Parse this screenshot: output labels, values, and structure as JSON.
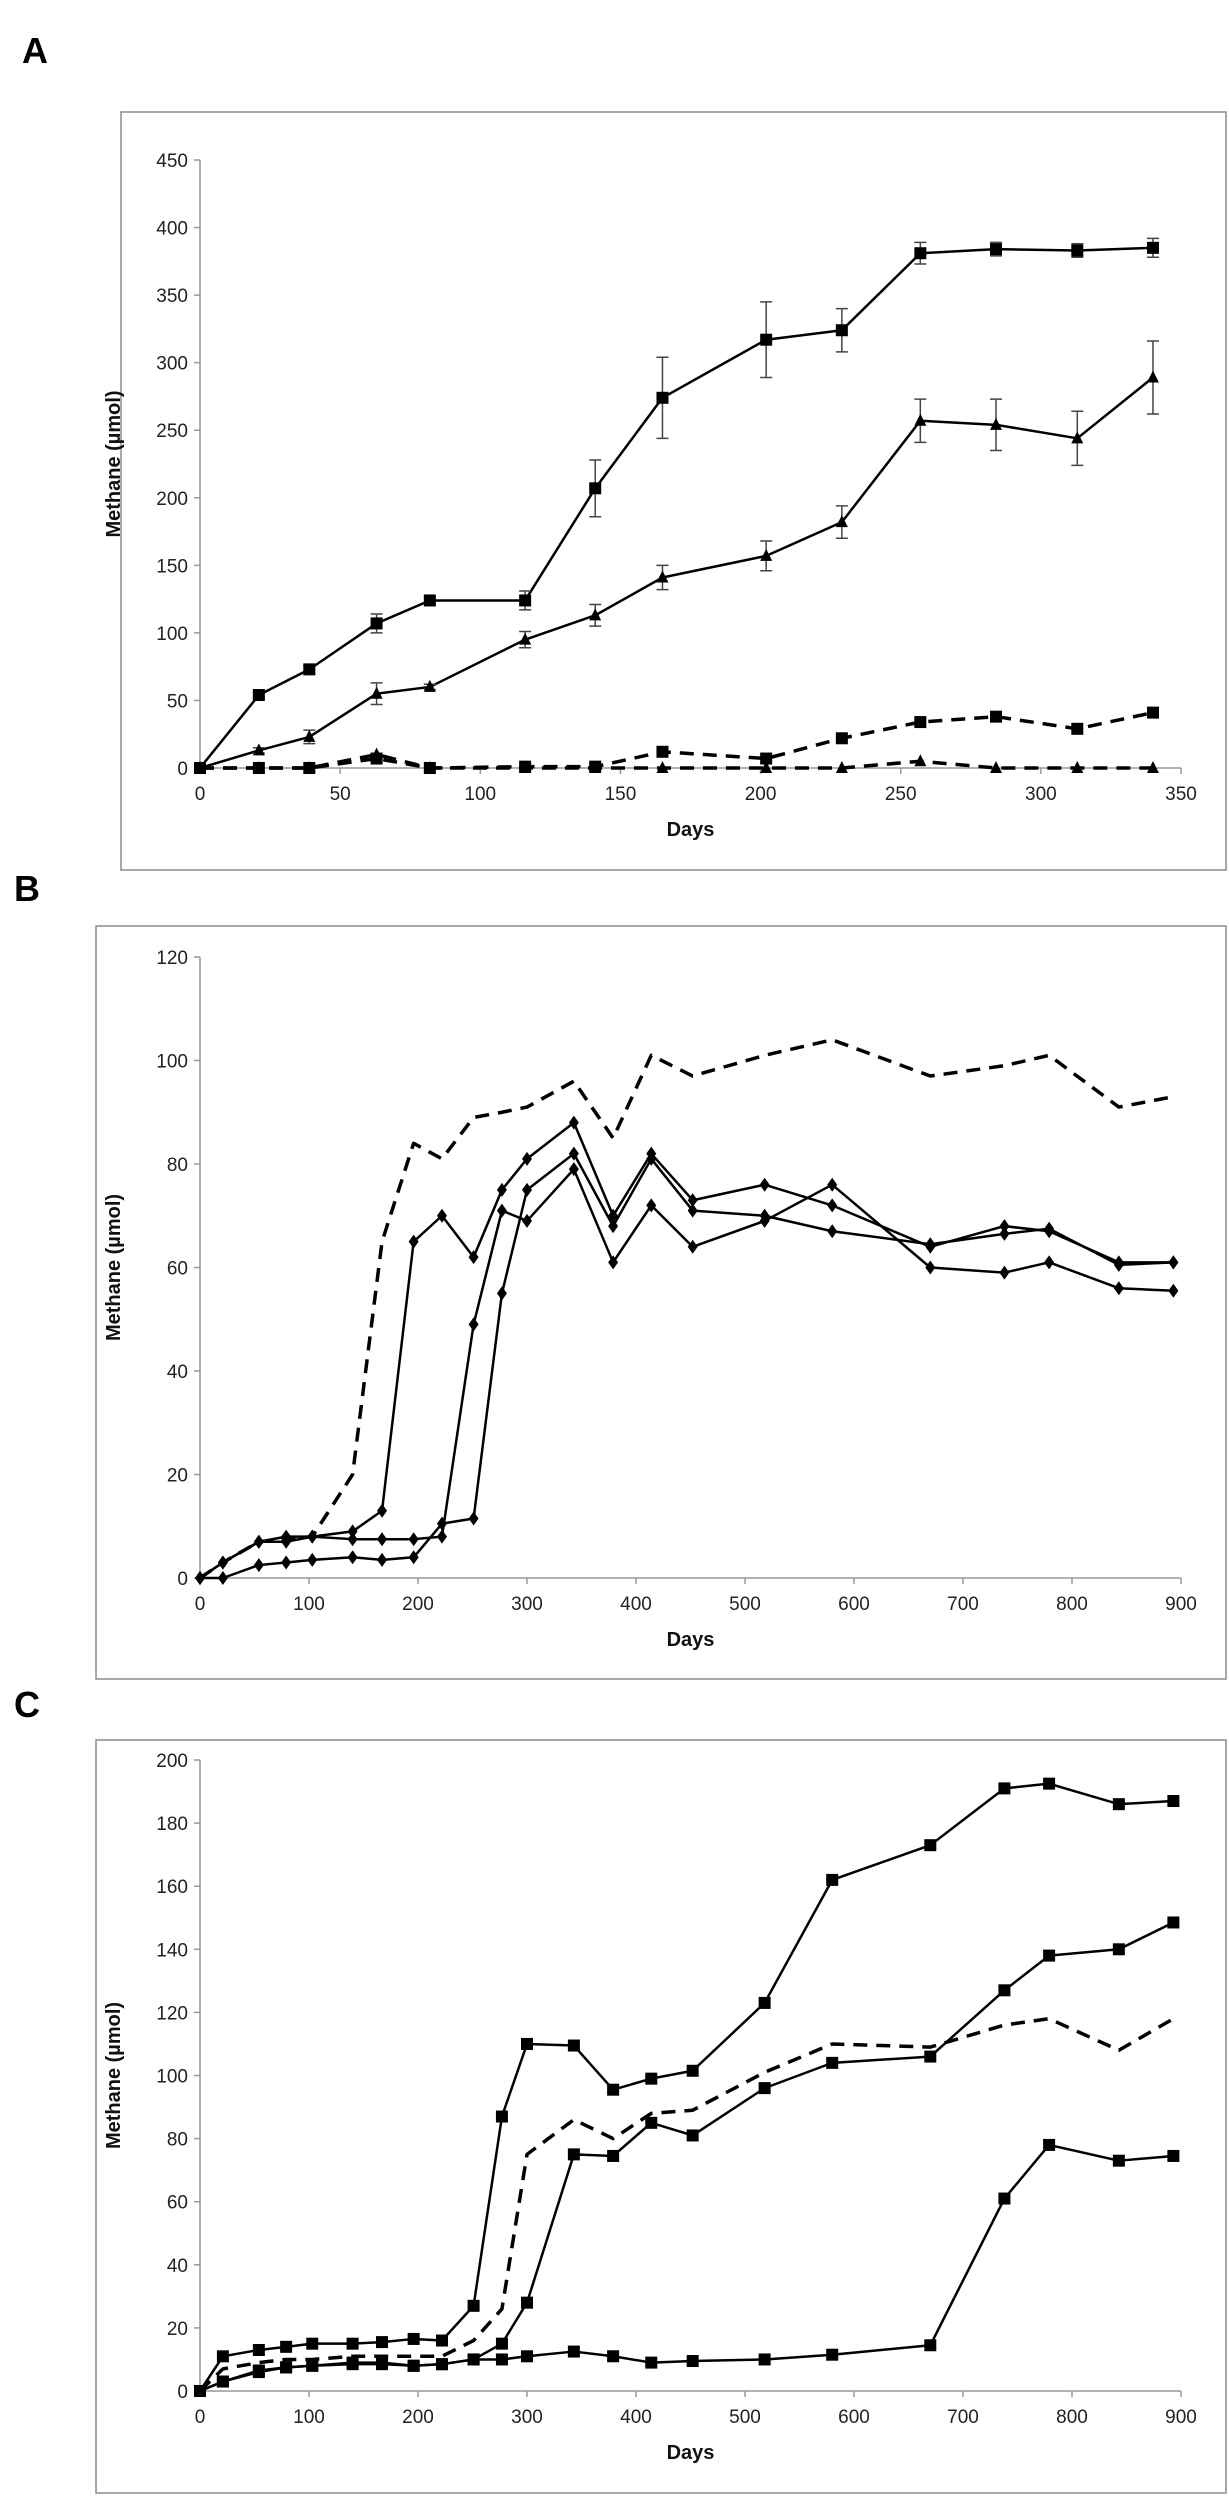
{
  "chart_data": [
    {
      "panel": "A",
      "type": "line",
      "xlabel": "Days",
      "ylabel": "Methane (µmol)",
      "xlim": [
        0,
        350
      ],
      "ylim": [
        0,
        450
      ],
      "xticks": [
        0,
        50,
        100,
        150,
        200,
        250,
        300,
        350
      ],
      "yticks": [
        0,
        50,
        100,
        150,
        200,
        250,
        300,
        350,
        400,
        450
      ],
      "grid": false,
      "x": [
        0,
        21,
        39,
        63,
        82,
        116,
        141,
        165,
        202,
        229,
        257,
        284,
        313,
        340
      ],
      "series": [
        {
          "name": "solid-square",
          "style": "solid",
          "marker": "square",
          "values": [
            0,
            54,
            73,
            107,
            124,
            124,
            207,
            274,
            317,
            324,
            381,
            384,
            383,
            385
          ],
          "error": [
            0,
            2,
            3,
            7,
            2,
            7,
            21,
            30,
            28,
            16,
            8,
            5,
            5,
            7
          ]
        },
        {
          "name": "solid-triangle",
          "style": "solid",
          "marker": "triangle",
          "values": [
            0,
            13,
            23,
            55,
            60,
            95,
            113,
            141,
            157,
            182,
            257,
            254,
            244,
            289
          ],
          "error": [
            0,
            2,
            5,
            8,
            2,
            6,
            8,
            9,
            11,
            12,
            16,
            19,
            20,
            27
          ]
        },
        {
          "name": "dashed-square",
          "style": "dashed",
          "marker": "square",
          "values": [
            0,
            0,
            0,
            7,
            0,
            1,
            1,
            12,
            7,
            22,
            34,
            38,
            29,
            41
          ]
        },
        {
          "name": "dashed-triangle",
          "style": "dashed",
          "marker": "triangle",
          "values": [
            0,
            0,
            0,
            10,
            0,
            0,
            0,
            0,
            0,
            0,
            5,
            0,
            0,
            0
          ]
        }
      ]
    },
    {
      "panel": "B",
      "type": "line",
      "xlabel": "Days",
      "ylabel": "Methane (µmol)",
      "xlim": [
        0,
        900
      ],
      "ylim": [
        0,
        120
      ],
      "xticks": [
        0,
        100,
        200,
        300,
        400,
        500,
        600,
        700,
        800,
        900
      ],
      "yticks": [
        0,
        20,
        40,
        60,
        80,
        100,
        120
      ],
      "grid": false,
      "x": [
        0,
        21,
        54,
        79,
        103,
        140,
        167,
        196,
        222,
        251,
        277,
        300,
        343,
        379,
        414,
        452,
        518,
        580,
        670,
        738,
        779,
        843,
        893
      ],
      "series": [
        {
          "name": "replicate-1",
          "style": "solid",
          "marker": "diamond",
          "values": [
            0,
            3,
            7,
            7,
            8,
            9,
            13,
            65,
            70,
            62,
            75,
            81,
            88,
            70,
            82,
            73,
            76,
            72,
            64,
            68,
            67,
            61,
            61
          ]
        },
        {
          "name": "replicate-2",
          "style": "solid",
          "marker": "diamond",
          "values": [
            0,
            3,
            7,
            8,
            8,
            7.5,
            7.5,
            7.5,
            8,
            49,
            71,
            69,
            79,
            61,
            72,
            64,
            69,
            76,
            60,
            59,
            61,
            56,
            55.5
          ]
        },
        {
          "name": "replicate-3",
          "style": "solid",
          "marker": "diamond",
          "values": [
            0,
            0,
            2.5,
            3,
            3.5,
            4,
            3.5,
            4,
            10.5,
            11.5,
            55,
            75,
            82,
            68,
            81,
            71,
            70,
            67,
            64.5,
            66.5,
            67.5,
            60.5,
            61
          ]
        },
        {
          "name": "dashed",
          "style": "dashed",
          "marker": "none",
          "values": [
            0,
            3,
            7,
            7.5,
            8,
            20,
            65,
            84,
            81,
            89,
            90,
            91,
            96,
            85,
            101,
            97,
            101,
            104,
            97,
            99,
            101,
            91,
            93
          ]
        }
      ]
    },
    {
      "panel": "C",
      "type": "line",
      "xlabel": "Days",
      "ylabel": "Methane (µmol)",
      "xlim": [
        0,
        900
      ],
      "ylim": [
        0,
        200
      ],
      "xticks": [
        0,
        100,
        200,
        300,
        400,
        500,
        600,
        700,
        800,
        900
      ],
      "yticks": [
        0,
        20,
        40,
        60,
        80,
        100,
        120,
        140,
        160,
        180,
        200
      ],
      "grid": false,
      "x": [
        0,
        21,
        54,
        79,
        103,
        140,
        167,
        196,
        222,
        251,
        277,
        300,
        343,
        379,
        414,
        452,
        518,
        580,
        670,
        738,
        779,
        843,
        893
      ],
      "series": [
        {
          "name": "replicate-1",
          "style": "solid",
          "marker": "square",
          "values": [
            0,
            11,
            13,
            14,
            15,
            15,
            15.5,
            16.5,
            16,
            27,
            87,
            110,
            109.5,
            95.5,
            99,
            101.5,
            123,
            162,
            173,
            191,
            192.5,
            186,
            187
          ]
        },
        {
          "name": "replicate-2",
          "style": "solid",
          "marker": "square",
          "values": [
            0,
            3,
            6,
            7.5,
            8,
            9,
            9,
            8,
            8.5,
            10,
            15,
            28,
            75,
            74.5,
            85,
            81,
            96,
            104,
            106,
            127,
            138,
            140,
            148.5
          ]
        },
        {
          "name": "replicate-3",
          "style": "solid",
          "marker": "square",
          "values": [
            0,
            3,
            6.5,
            7.5,
            8,
            8.5,
            8.5,
            8,
            8.5,
            10,
            10,
            11,
            12.5,
            11,
            9,
            9.5,
            10,
            11.5,
            14.5,
            61,
            78,
            73,
            74.5
          ]
        },
        {
          "name": "dashed",
          "style": "dashed",
          "marker": "none",
          "values": [
            0,
            7,
            9,
            10,
            10,
            11,
            11,
            11,
            11,
            16,
            26,
            75,
            86,
            80,
            88,
            89,
            101,
            110,
            109,
            116,
            118,
            108,
            118
          ]
        }
      ]
    }
  ]
}
